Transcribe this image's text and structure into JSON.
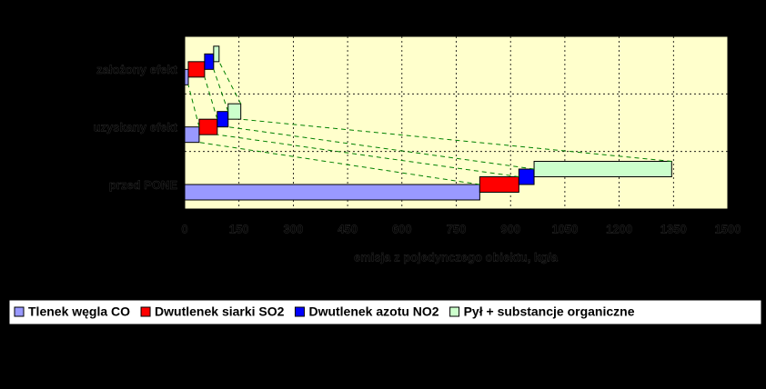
{
  "chart_data": {
    "type": "bar",
    "x_label": "emisja z pojedynczego obiektu, kg/a",
    "categories": [
      "przed PONE",
      "uzyskany efekt",
      "założony efekt"
    ],
    "series": [
      {
        "name": "Tlenek węgla CO",
        "color": "#9999ff",
        "values": [
          815,
          40,
          10
        ]
      },
      {
        "name": "Dwutlenek siarki SO2",
        "color": "#ff0000",
        "values": [
          108,
          50,
          45
        ]
      },
      {
        "name": "Dwutlenek azotu NO2",
        "color": "#0000ff",
        "values": [
          42,
          30,
          25
        ]
      },
      {
        "name": "Pył + substancje organiczne",
        "color": "#ccffcc",
        "values": [
          380,
          35,
          15
        ]
      }
    ],
    "xlim": [
      0,
      1500
    ],
    "xticks": [
      0,
      150,
      300,
      450,
      600,
      750,
      900,
      1050,
      1200,
      1350,
      1500
    ],
    "grid": true
  }
}
